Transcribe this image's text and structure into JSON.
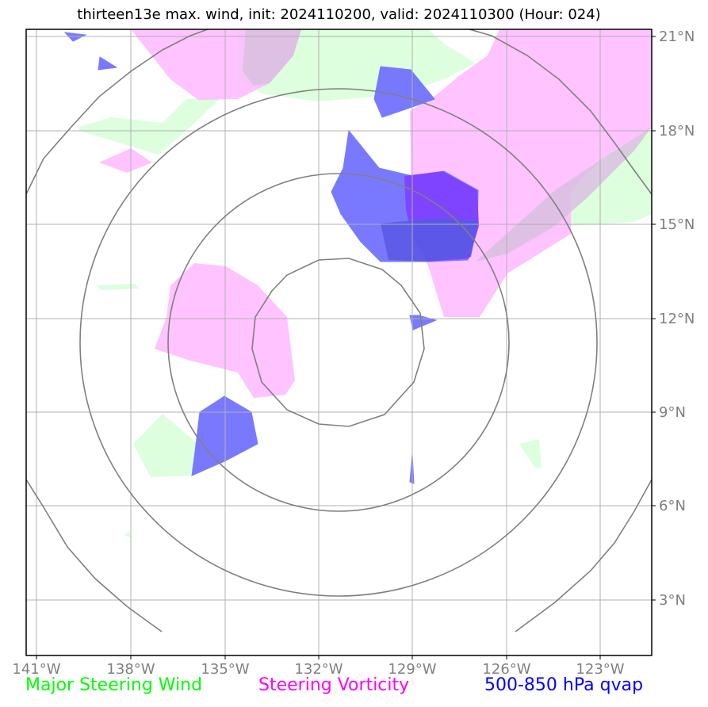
{
  "title": "thirteen13e max. wind, init: 2024110200, valid: 2024110300 (Hour: 024)",
  "lon_ticks": [
    "141°W",
    "138°W",
    "135°W",
    "132°W",
    "129°W",
    "126°W",
    "123°W"
  ],
  "lat_ticks": [
    "21°N",
    "18°N",
    "15°N",
    "12°N",
    "9°N",
    "6°N",
    "3°N"
  ],
  "legend": {
    "wind": "Major Steering Wind",
    "vorticity": "Steering Vorticity",
    "qvap": "500-850 hPa qvap"
  },
  "colors": {
    "wind": "#00ff00",
    "vorticity": "#ff00ff",
    "qvap": "#0000ff",
    "wind_fill": "#ddffdd",
    "vorticity_fill": "#ffc0ff",
    "qvap_fill": "#7b7bff",
    "qvap_strong_fill": "#7f3fff"
  },
  "map": {
    "lon_range": [
      -141.3,
      -121.3
    ],
    "lat_range": [
      1.3,
      21.2
    ],
    "center": [
      -131.0,
      11.0
    ],
    "range_rings_deg": [
      3,
      6,
      9,
      12
    ]
  }
}
